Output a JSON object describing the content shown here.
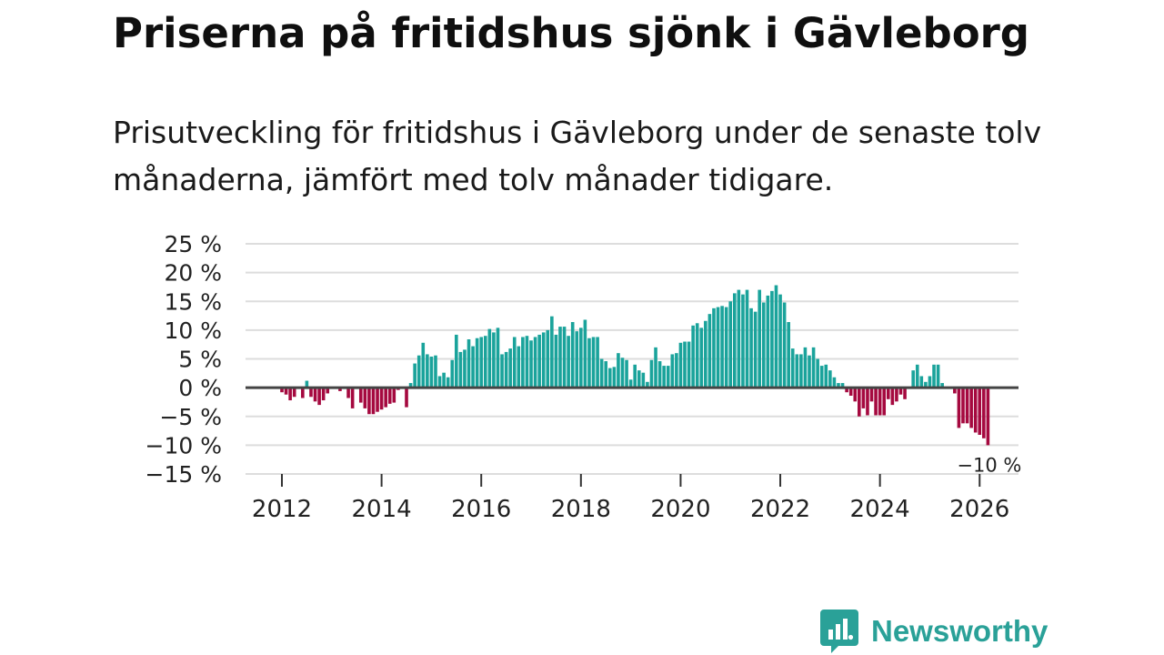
{
  "title": "Priserna på fritidshus sjönk i Gävleborg",
  "subtitle": "Prisutveckling för fritidshus i Gävleborg under de senaste tolv månaderna, jämfört med tolv månader tidigare.",
  "brand": {
    "name": "Newsworthy",
    "color": "#2aa198",
    "icon": "newsworthy-logo-icon"
  },
  "chart_data": {
    "type": "bar",
    "value_unit": "%",
    "start": "2012-01",
    "frequency": "monthly",
    "colors": {
      "positive": "#1aa39b",
      "negative": "#a5093f",
      "zero_line": "#444444",
      "grid": "#dddddd"
    },
    "ylim": [
      -15,
      25
    ],
    "y_ticks": [
      {
        "value": 25,
        "label": "25 %"
      },
      {
        "value": 20,
        "label": "20 %"
      },
      {
        "value": 15,
        "label": "15 %"
      },
      {
        "value": 10,
        "label": "10 %"
      },
      {
        "value": 5,
        "label": "5 %"
      },
      {
        "value": 0,
        "label": "0 %"
      },
      {
        "value": -5,
        "label": "−5 %"
      },
      {
        "value": -10,
        "label": "−10 %"
      },
      {
        "value": -15,
        "label": "−15 %"
      }
    ],
    "x_ticks": [
      {
        "date": "2012-01",
        "label": "2012"
      },
      {
        "date": "2014-01",
        "label": "2014"
      },
      {
        "date": "2016-01",
        "label": "2016"
      },
      {
        "date": "2018-01",
        "label": "2018"
      },
      {
        "date": "2020-01",
        "label": "2020"
      },
      {
        "date": "2022-01",
        "label": "2022"
      },
      {
        "date": "2024-01",
        "label": "2024"
      },
      {
        "date": "2026-01",
        "label": "2026"
      }
    ],
    "grid": true,
    "legend": "none",
    "last_value_label": "−10 %",
    "values": [
      -0.8,
      -1.2,
      -2.2,
      -1.6,
      0,
      -1.8,
      1.2,
      -1.6,
      -2.4,
      -3.0,
      -2.2,
      -1.0,
      0,
      0,
      -0.6,
      0,
      -1.8,
      -3.6,
      0,
      -2.6,
      -3.6,
      -4.6,
      -4.6,
      -4.2,
      -3.8,
      -3.4,
      -2.8,
      -2.6,
      -0.4,
      0,
      -3.4,
      0.8,
      4.2,
      5.6,
      7.8,
      5.8,
      5.4,
      5.6,
      2.0,
      2.6,
      1.8,
      4.8,
      9.2,
      6.2,
      6.6,
      8.4,
      7.2,
      8.6,
      8.8,
      9.0,
      10.2,
      9.6,
      10.4,
      5.8,
      6.2,
      6.8,
      8.8,
      7.2,
      8.8,
      9.0,
      8.2,
      8.8,
      9.2,
      9.6,
      10.0,
      12.4,
      9.2,
      10.6,
      10.6,
      9.0,
      11.4,
      9.8,
      10.4,
      11.8,
      8.6,
      8.8,
      8.8,
      5.0,
      4.6,
      3.4,
      3.6,
      6.0,
      5.2,
      4.8,
      1.4,
      4.0,
      3.0,
      2.6,
      1.0,
      4.8,
      7.0,
      4.6,
      3.8,
      3.8,
      5.8,
      6.0,
      7.8,
      8.0,
      8.0,
      10.8,
      11.2,
      10.4,
      11.6,
      12.8,
      13.8,
      14.0,
      14.2,
      14.0,
      15.0,
      16.4,
      17.0,
      16.2,
      17.0,
      13.8,
      13.2,
      17.0,
      14.8,
      16.0,
      16.8,
      17.8,
      16.2,
      14.8,
      11.4,
      6.8,
      5.8,
      5.8,
      7.0,
      5.6,
      7.0,
      5.0,
      3.8,
      4.0,
      3.0,
      1.8,
      0.8,
      0.8,
      -0.8,
      -1.4,
      -2.4,
      -5.0,
      -3.6,
      -4.8,
      -2.4,
      -4.8,
      -4.8,
      -4.8,
      -2.0,
      -3.0,
      -2.4,
      -1.2,
      -2.0,
      0,
      3.0,
      4.0,
      2.0,
      1.0,
      2.0,
      4.0,
      4.0,
      0.8,
      0,
      0,
      -1.0,
      -7.0,
      -6.2,
      -6.2,
      -7.0,
      -7.8,
      -8.2,
      -8.8,
      -10.0
    ]
  }
}
